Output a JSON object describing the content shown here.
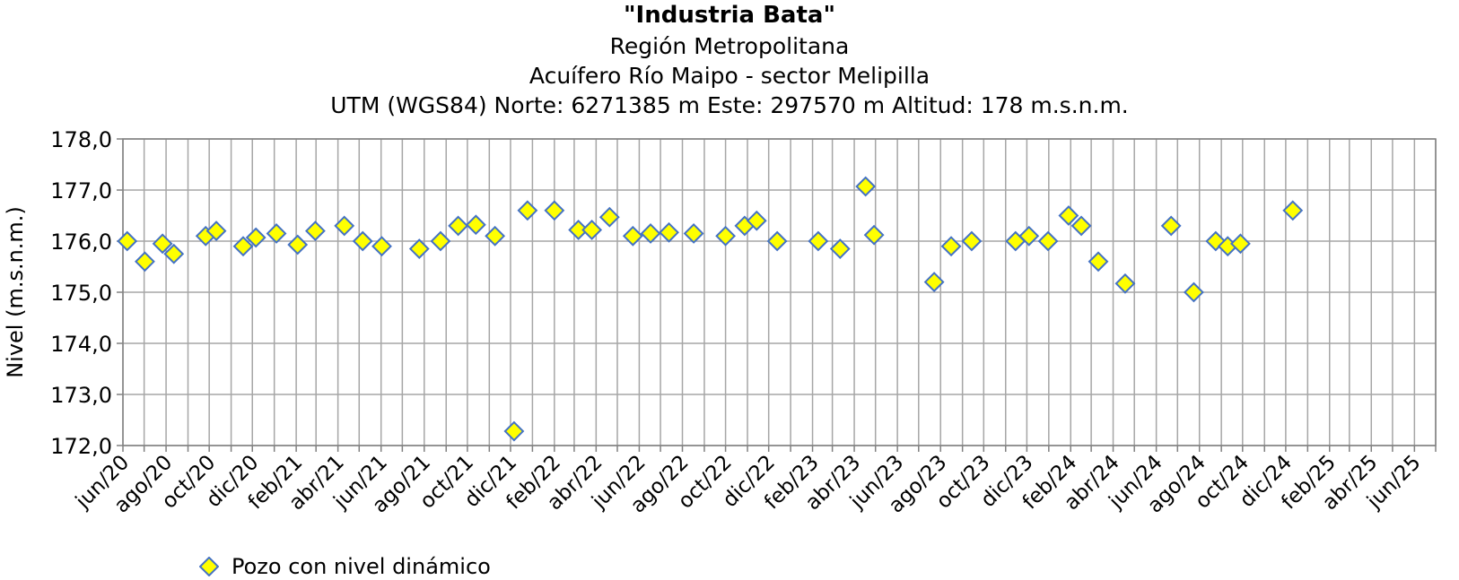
{
  "chart_data": {
    "type": "scatter",
    "title": "\"Industria Bata\"",
    "subtitle": [
      "Región Metropolitana",
      "Acuífero Río Maipo - sector Melipilla",
      "UTM (WGS84) Norte: 6271385 m Este: 297570 m   Altitud: 178 m.s.n.m."
    ],
    "xlabel": "",
    "ylabel": "Nivel (m.s.n.m.)",
    "ylim": [
      172,
      178
    ],
    "yticks": [
      "172,0",
      "173,0",
      "174,0",
      "175,0",
      "176,0",
      "177,0",
      "178,0"
    ],
    "xlim": [
      "2020-06-01",
      "2025-07-01"
    ],
    "xticks": [
      "jun/20",
      "ago/20",
      "oct/20",
      "dic/20",
      "feb/21",
      "abr/21",
      "jun/21",
      "ago/21",
      "oct/21",
      "dic/21",
      "feb/22",
      "abr/22",
      "jun/22",
      "ago/22",
      "oct/22",
      "dic/22",
      "feb/23",
      "abr/23",
      "jun/23",
      "ago/23",
      "oct/23",
      "dic/23",
      "feb/24",
      "abr/24",
      "jun/24",
      "ago/24",
      "oct/24",
      "dic/24",
      "feb/25",
      "abr/25",
      "jun/25"
    ],
    "grid": true,
    "legend": {
      "placement": "bottom-left",
      "entries": [
        "Pozo con nivel dinámico"
      ]
    },
    "marker": {
      "shape": "diamond",
      "fill": "#FFFF00",
      "stroke": "#4472C4"
    },
    "series": [
      {
        "name": "Pozo con nivel dinámico",
        "points": [
          {
            "x": "2020-06-07",
            "y": 176.0
          },
          {
            "x": "2020-07-02",
            "y": 175.6
          },
          {
            "x": "2020-07-27",
            "y": 175.95
          },
          {
            "x": "2020-08-12",
            "y": 175.75
          },
          {
            "x": "2020-09-26",
            "y": 176.1
          },
          {
            "x": "2020-10-11",
            "y": 176.2
          },
          {
            "x": "2020-11-18",
            "y": 175.9
          },
          {
            "x": "2020-12-06",
            "y": 176.07
          },
          {
            "x": "2021-01-04",
            "y": 176.15
          },
          {
            "x": "2021-02-03",
            "y": 175.93
          },
          {
            "x": "2021-02-28",
            "y": 176.2
          },
          {
            "x": "2021-04-10",
            "y": 176.3
          },
          {
            "x": "2021-05-06",
            "y": 176.0
          },
          {
            "x": "2021-06-02",
            "y": 175.9
          },
          {
            "x": "2021-07-25",
            "y": 175.85
          },
          {
            "x": "2021-08-24",
            "y": 176.0
          },
          {
            "x": "2021-09-18",
            "y": 176.3
          },
          {
            "x": "2021-10-13",
            "y": 176.32
          },
          {
            "x": "2021-11-09",
            "y": 176.1
          },
          {
            "x": "2021-12-06",
            "y": 172.28
          },
          {
            "x": "2021-12-25",
            "y": 176.6
          },
          {
            "x": "2022-02-01",
            "y": 176.6
          },
          {
            "x": "2022-03-07",
            "y": 176.22
          },
          {
            "x": "2022-03-26",
            "y": 176.22
          },
          {
            "x": "2022-04-20",
            "y": 176.47
          },
          {
            "x": "2022-05-23",
            "y": 176.1
          },
          {
            "x": "2022-06-17",
            "y": 176.15
          },
          {
            "x": "2022-07-13",
            "y": 176.17
          },
          {
            "x": "2022-08-17",
            "y": 176.15
          },
          {
            "x": "2022-10-01",
            "y": 176.1
          },
          {
            "x": "2022-10-28",
            "y": 176.3
          },
          {
            "x": "2022-11-14",
            "y": 176.4
          },
          {
            "x": "2022-12-13",
            "y": 176.0
          },
          {
            "x": "2023-02-09",
            "y": 176.0
          },
          {
            "x": "2023-03-12",
            "y": 175.85
          },
          {
            "x": "2023-04-17",
            "y": 177.07
          },
          {
            "x": "2023-04-29",
            "y": 176.12
          },
          {
            "x": "2023-07-23",
            "y": 175.2
          },
          {
            "x": "2023-08-16",
            "y": 175.9
          },
          {
            "x": "2023-09-14",
            "y": 176.0
          },
          {
            "x": "2023-11-15",
            "y": 176.0
          },
          {
            "x": "2023-12-04",
            "y": 176.1
          },
          {
            "x": "2023-12-31",
            "y": 176.0
          },
          {
            "x": "2024-01-29",
            "y": 176.5
          },
          {
            "x": "2024-02-16",
            "y": 176.3
          },
          {
            "x": "2024-03-11",
            "y": 175.6
          },
          {
            "x": "2024-04-18",
            "y": 175.17
          },
          {
            "x": "2024-06-22",
            "y": 176.3
          },
          {
            "x": "2024-07-24",
            "y": 175.0
          },
          {
            "x": "2024-08-24",
            "y": 176.0
          },
          {
            "x": "2024-09-10",
            "y": 175.9
          },
          {
            "x": "2024-09-28",
            "y": 175.95
          },
          {
            "x": "2024-12-11",
            "y": 176.6
          }
        ]
      }
    ]
  }
}
